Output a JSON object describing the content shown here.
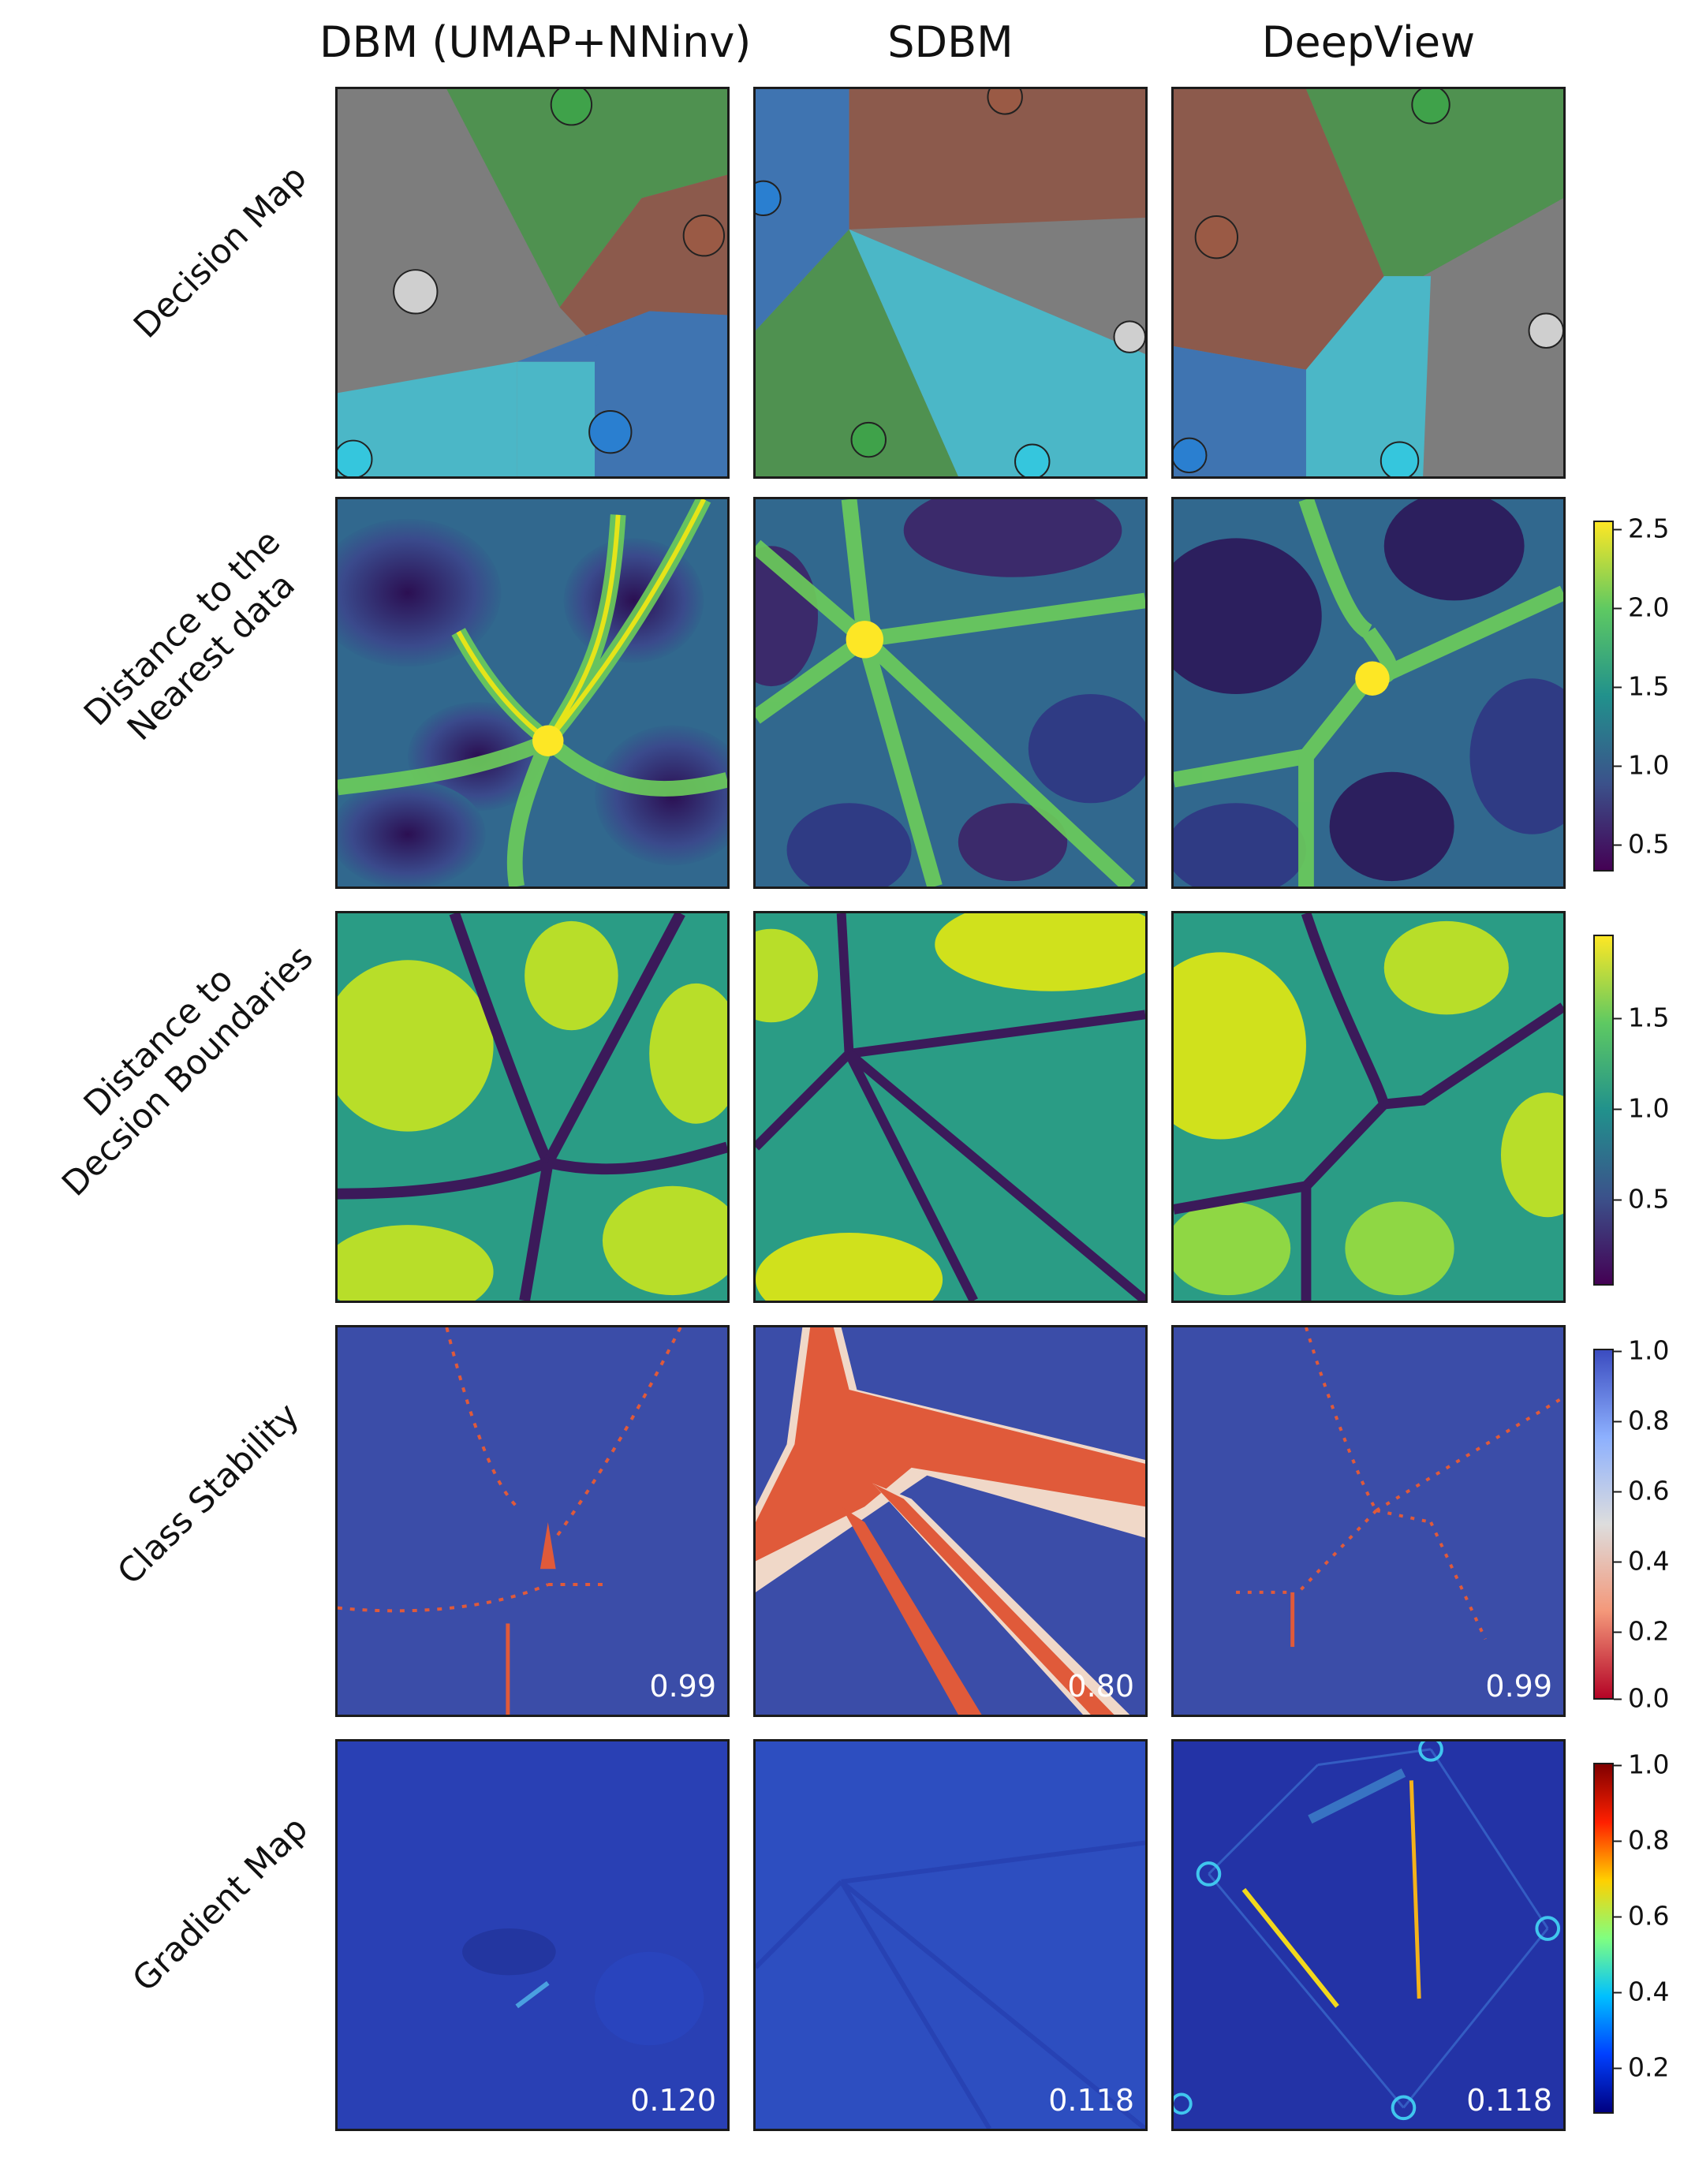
{
  "columns": [
    "DBM (UMAP+NNinv)",
    "SDBM",
    "DeepView"
  ],
  "rows": [
    {
      "label": [
        "Decision Map"
      ]
    },
    {
      "label": [
        "Distance to the",
        "Nearest data"
      ]
    },
    {
      "label": [
        "Distance to",
        "Decsion Boundaries"
      ]
    },
    {
      "label": [
        "Class Stability"
      ]
    },
    {
      "label": [
        "Gradient Map"
      ]
    }
  ],
  "scores": {
    "class_stability": [
      "0.99",
      "0.80",
      "0.99"
    ],
    "gradient_map": [
      "0.120",
      "0.118",
      "0.118"
    ]
  },
  "colorbars": {
    "distance_nearest": {
      "ticks": [
        "2.5",
        "2.0",
        "1.5",
        "1.0",
        "0.5"
      ],
      "colormap": "viridis"
    },
    "distance_boundaries": {
      "ticks": [
        "1.5",
        "1.0",
        "0.5"
      ],
      "colormap": "viridis"
    },
    "class_stability": {
      "ticks": [
        "1.0",
        "0.8",
        "0.6",
        "0.4",
        "0.2",
        "0.0"
      ],
      "colormap": "coolwarm-reversed"
    },
    "gradient_map": {
      "ticks": [
        "1.0",
        "0.8",
        "0.6",
        "0.4",
        "0.2"
      ],
      "colormap": "jet"
    }
  },
  "class_colors": {
    "green": "#4f9150",
    "brown": "#8c5a4c",
    "gray": "#7d7d7d",
    "blue": "#3f74b1",
    "cyan": "#4bb7c7"
  }
}
